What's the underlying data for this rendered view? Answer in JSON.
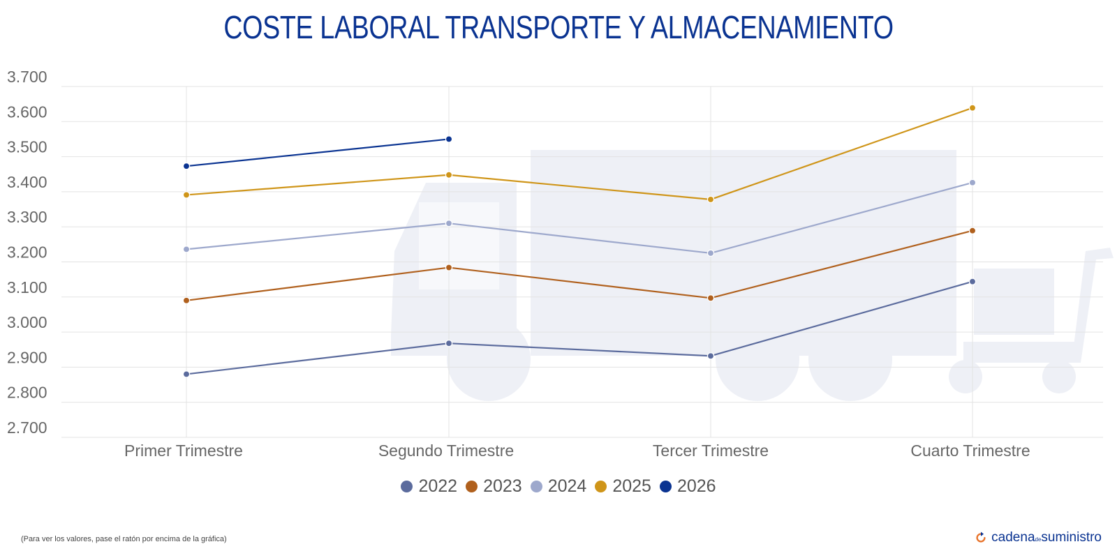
{
  "title": "COSTE LABORAL TRANSPORTE Y ALMACENAMIENTO",
  "footnote": "(Para ver los valores, pase el ratón por encima de la gráfica)",
  "brand": {
    "part1": "cadena",
    "part2": "de",
    "part3": "suministro"
  },
  "colors": {
    "title": "#0a3391",
    "watermark": "#eef0f6",
    "grid": "#e3e3e3",
    "brand_accent": "#e8732a"
  },
  "chart_data": {
    "type": "line",
    "title": "COSTE LABORAL TRANSPORTE Y ALMACENAMIENTO",
    "categories": [
      "Primer Trimestre",
      "Segundo Trimestre",
      "Tercer Trimestre",
      "Cuarto Trimestre"
    ],
    "ylim": [
      2700,
      3700
    ],
    "ytick_values": [
      2700,
      2800,
      2900,
      3000,
      3100,
      3200,
      3300,
      3400,
      3500,
      3600,
      3700
    ],
    "ytick_labels": [
      "2.700",
      "2.800",
      "2.900",
      "3.000",
      "3.100",
      "3.200",
      "3.300",
      "3.400",
      "3.500",
      "3.600",
      "3.700"
    ],
    "grid": true,
    "legend_position": "bottom",
    "series": [
      {
        "name": "2022",
        "color": "#5b6b9d",
        "values": [
          2880,
          2968,
          2932,
          3144
        ]
      },
      {
        "name": "2023",
        "color": "#b0601d",
        "values": [
          3090,
          3184,
          3097,
          3289
        ]
      },
      {
        "name": "2024",
        "color": "#9da8cc",
        "values": [
          3236,
          3310,
          3225,
          3426
        ]
      },
      {
        "name": "2025",
        "color": "#cf9519",
        "values": [
          3391,
          3448,
          3378,
          3639
        ]
      },
      {
        "name": "2026",
        "color": "#0a3391",
        "values": [
          3473,
          3550,
          null,
          null
        ]
      }
    ]
  }
}
